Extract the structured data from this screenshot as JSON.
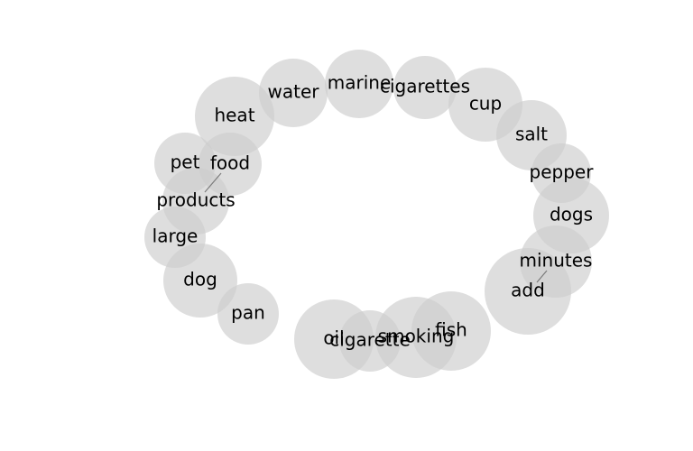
{
  "diagram": {
    "words": [
      {
        "text": "water"
      },
      {
        "text": "marine"
      },
      {
        "text": "cigarettes"
      },
      {
        "text": "cup"
      },
      {
        "text": "heat"
      },
      {
        "text": "salt"
      },
      {
        "text": "pepper"
      },
      {
        "text": "pet"
      },
      {
        "text": "food"
      },
      {
        "text": "products"
      },
      {
        "text": "dogs"
      },
      {
        "text": "large"
      },
      {
        "text": "minutes"
      },
      {
        "text": "add"
      },
      {
        "text": "dog"
      },
      {
        "text": "pan"
      },
      {
        "text": "oil"
      },
      {
        "text": "cigarette"
      },
      {
        "text": "smoking"
      },
      {
        "text": "fish"
      }
    ]
  }
}
